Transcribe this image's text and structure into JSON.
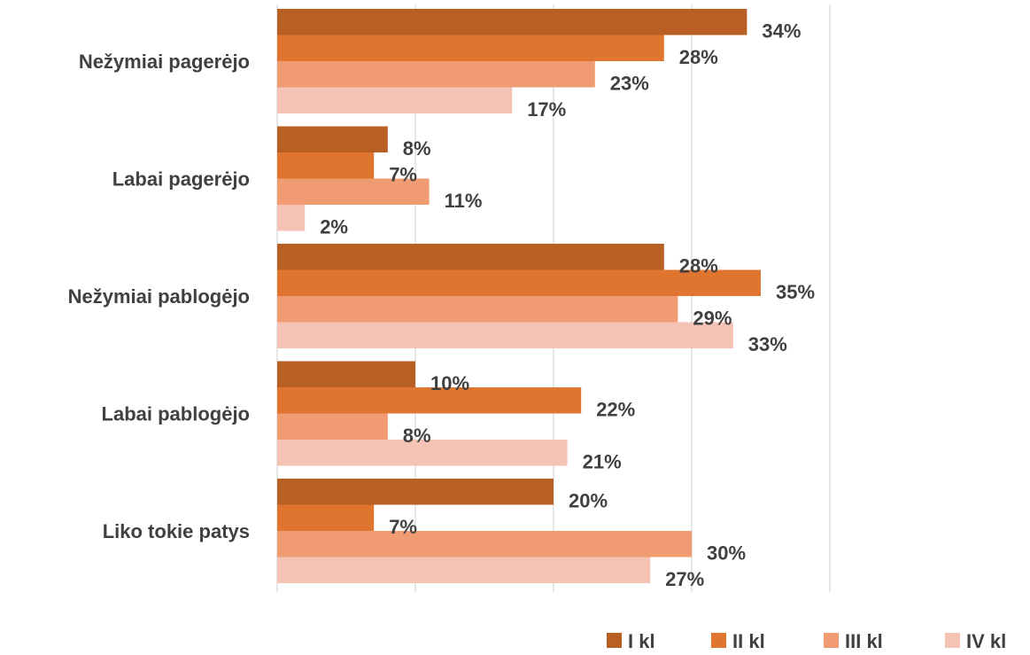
{
  "chart_data": {
    "type": "bar",
    "orientation": "horizontal",
    "categories": [
      "Nežymiai pagerėjo",
      "Labai pagerėjo",
      "Nežymiai pablogėjo",
      "Labai pablogėjo",
      "Liko tokie patys"
    ],
    "series": [
      {
        "name": "I kl",
        "color": "#b85f24",
        "values": [
          34,
          8,
          28,
          10,
          20
        ]
      },
      {
        "name": "II kl",
        "color": "#e07530",
        "values": [
          28,
          7,
          35,
          22,
          7
        ]
      },
      {
        "name": "III kl",
        "color": "#f09b72",
        "values": [
          23,
          11,
          29,
          8,
          30
        ]
      },
      {
        "name": "IV kl",
        "color": "#f5c3b3",
        "values": [
          17,
          2,
          33,
          21,
          27
        ]
      }
    ],
    "value_suffix": "%",
    "xlim": [
      0,
      40
    ],
    "gridlines": [
      0,
      10,
      20,
      30,
      40
    ],
    "grid": true,
    "legend_position": "bottom-right",
    "title": "",
    "xlabel": "",
    "ylabel": ""
  }
}
